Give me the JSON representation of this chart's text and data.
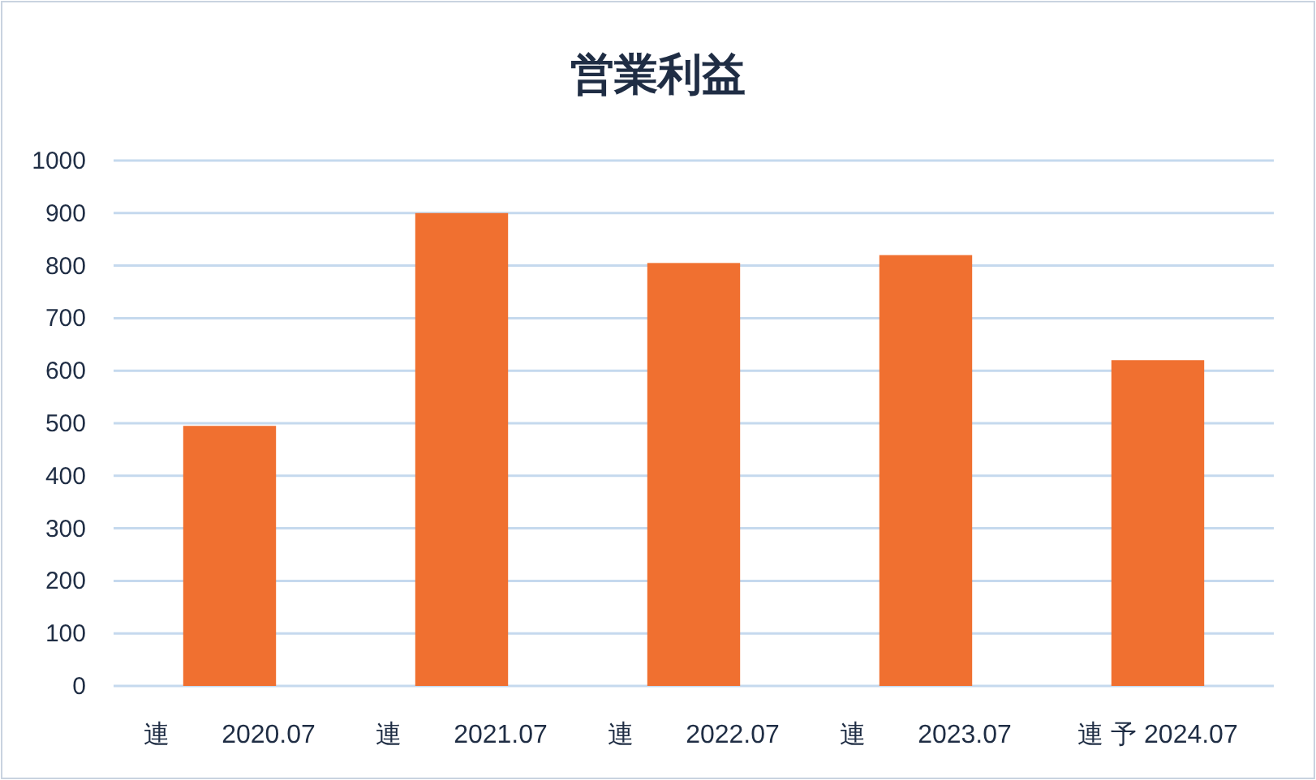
{
  "chart_data": {
    "type": "bar",
    "title": "営業利益",
    "categories": [
      "連　　2020.07",
      "連　　2021.07",
      "連　　2022.07",
      "連　　2023.07",
      "連 予 2024.07"
    ],
    "values": [
      495,
      900,
      805,
      820,
      620
    ],
    "color": "#f07030",
    "ylim": [
      0,
      1000
    ],
    "yticks": [
      0,
      100,
      200,
      300,
      400,
      500,
      600,
      700,
      800,
      900,
      1000
    ],
    "grid": "y"
  }
}
